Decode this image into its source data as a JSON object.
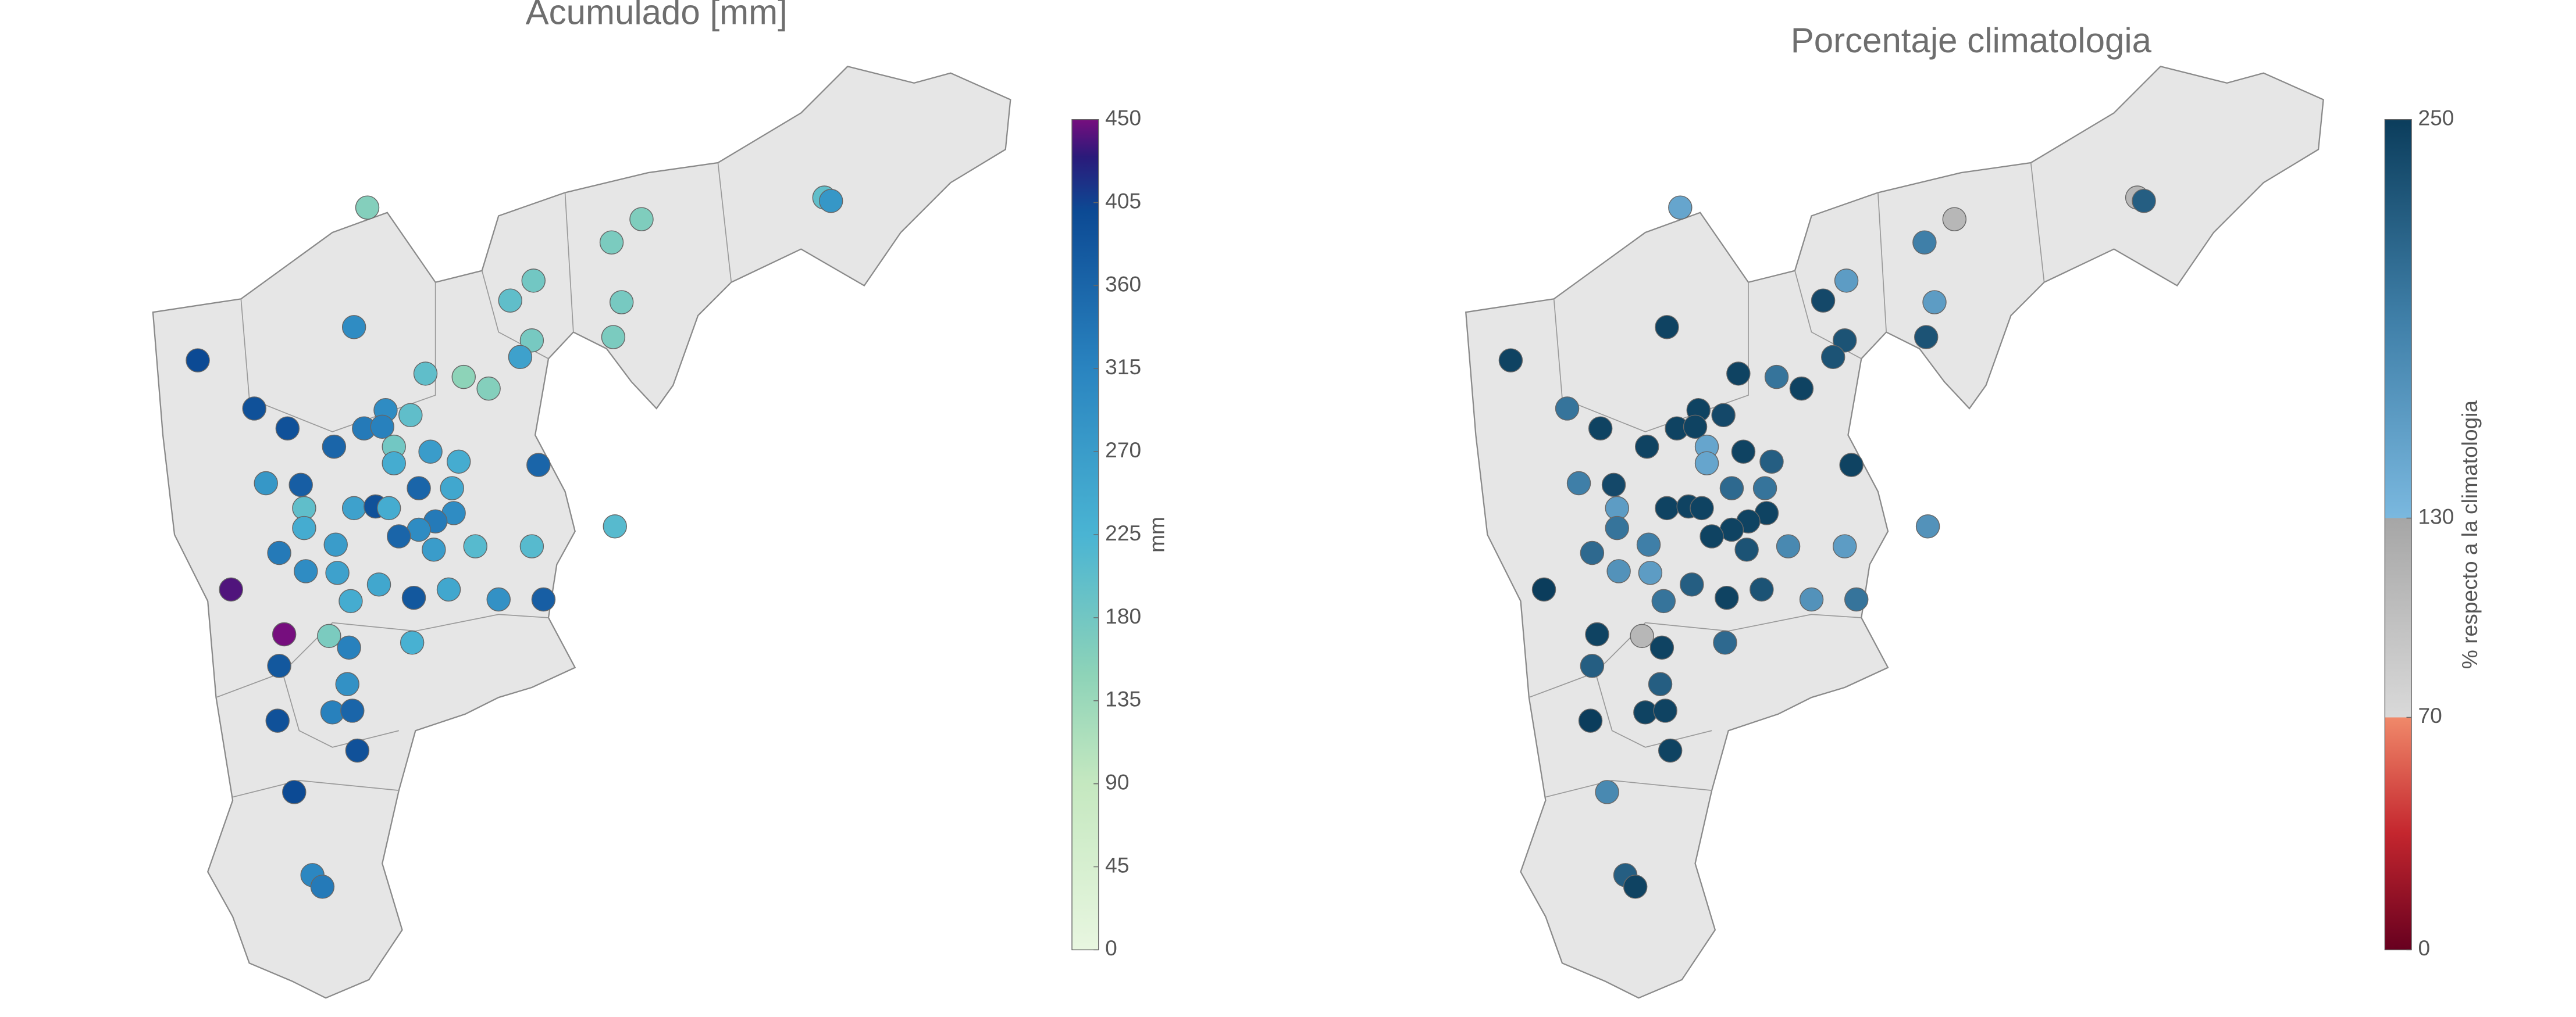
{
  "chart_data": [
    {
      "type": "map",
      "title": "Acumulado [mm]",
      "colorbar": {
        "label": "mm",
        "lim": [
          0,
          450
        ],
        "ticks": [
          0,
          45,
          90,
          135,
          180,
          225,
          270,
          315,
          360,
          405,
          450
        ],
        "colors": [
          "#e8f6e0",
          "#c5e8c0",
          "#8dd3b8",
          "#4ab4d3",
          "#2a84c0",
          "#0c4a94",
          "#2a1a7a",
          "#760e7e"
        ]
      },
      "values": [
        160,
        165,
        170,
        180,
        200,
        175,
        300,
        400,
        175,
        170,
        260,
        200,
        150,
        160,
        390,
        300,
        200,
        390,
        330,
        320,
        360,
        180,
        270,
        240,
        240,
        360,
        280,
        370,
        360,
        250,
        200,
        260,
        390,
        240,
        300,
        330,
        240,
        300,
        360,
        210,
        270,
        330,
        210,
        210,
        270,
        300,
        260,
        250,
        440,
        250,
        380,
        240,
        290,
        370,
        450,
        170,
        230,
        320,
        380,
        290,
        320,
        360,
        390,
        390,
        400,
        310,
        330,
        200,
        280
      ]
    },
    {
      "type": "map",
      "title": "Porcentaje climatologia",
      "colorbar": {
        "label": "% respecto a la climatologia",
        "lim": [
          0,
          250
        ],
        "ticks": [
          0,
          70,
          130,
          250
        ],
        "colors": [
          "#67001f",
          "#c4262e",
          "#f0896a",
          "#d9d9d9",
          "#a6a6a6",
          "#7ab8df",
          "#3f7fa8",
          "#0b3d5c"
        ]
      },
      "values": [
        150,
        110,
        190,
        160,
        240,
        160,
        245,
        245,
        230,
        230,
        230,
        245,
        200,
        245,
        200,
        245,
        240,
        245,
        245,
        245,
        245,
        150,
        245,
        220,
        150,
        245,
        190,
        240,
        210,
        200,
        160,
        245,
        245,
        245,
        245,
        245,
        200,
        245,
        245,
        170,
        190,
        210,
        180,
        160,
        230,
        170,
        160,
        220,
        250,
        230,
        245,
        200,
        170,
        200,
        245,
        110,
        210,
        245,
        220,
        220,
        245,
        245,
        250,
        245,
        180,
        220,
        245,
        110,
        220
      ]
    }
  ]
}
